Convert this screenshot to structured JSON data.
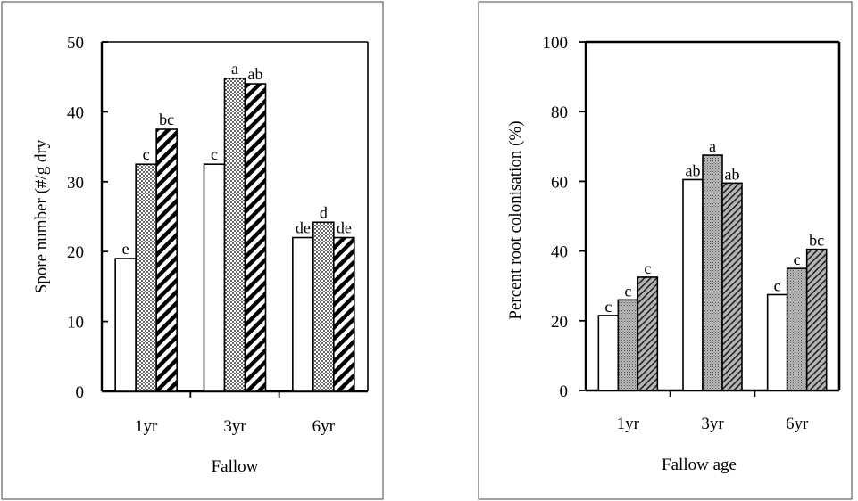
{
  "chart_data": [
    {
      "type": "bar",
      "categories": [
        "1yr",
        "3yr",
        "6yr"
      ],
      "series": [
        {
          "values": [
            19,
            32.5,
            22
          ],
          "labels": [
            "e",
            "c",
            "de"
          ],
          "fill": "white"
        },
        {
          "values": [
            32.5,
            44.8,
            24.2
          ],
          "labels": [
            "c",
            "a",
            "d"
          ],
          "fill": "dots"
        },
        {
          "values": [
            37.5,
            44,
            22
          ],
          "labels": [
            "bc",
            "ab",
            "de"
          ],
          "fill": "hatch"
        }
      ],
      "xlabel": "Fallow",
      "ylabel": "Spore number (#/g dry",
      "ylim": [
        0,
        50
      ],
      "yticks": [
        "0",
        "10",
        "20",
        "30",
        "40",
        "50"
      ],
      "legend": "none"
    },
    {
      "type": "bar",
      "categories": [
        "1yr",
        "3yr",
        "6yr"
      ],
      "series": [
        {
          "values": [
            21.5,
            60.5,
            27.5
          ],
          "labels": [
            "c",
            "ab",
            "c"
          ],
          "fill": "white"
        },
        {
          "values": [
            26,
            67.5,
            35
          ],
          "labels": [
            "c",
            "a",
            "c"
          ],
          "fill": "grey-dense"
        },
        {
          "values": [
            32.5,
            59.5,
            40.5
          ],
          "labels": [
            "c",
            "ab",
            "bc"
          ],
          "fill": "grey-hatch"
        }
      ],
      "xlabel": "Fallow age",
      "ylabel": "Percent root colonisation (%)",
      "ylim": [
        0,
        100
      ],
      "yticks": [
        "0",
        "20",
        "40",
        "60",
        "80",
        "100"
      ],
      "legend": "none"
    }
  ]
}
